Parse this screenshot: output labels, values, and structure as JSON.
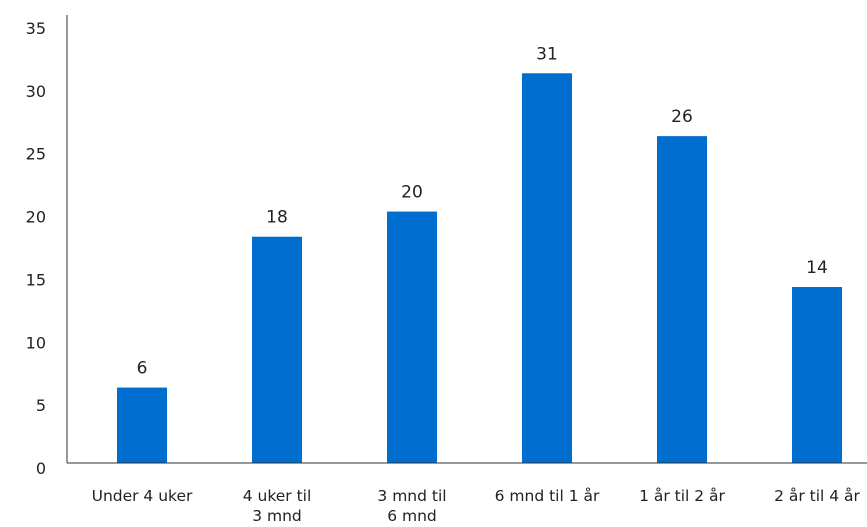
{
  "chart_data": {
    "type": "bar",
    "categories": [
      [
        "Under 4 uker"
      ],
      [
        "4 uker til",
        "3 mnd"
      ],
      [
        "3 mnd til",
        "6 mnd"
      ],
      [
        "6 mnd til 1 år"
      ],
      [
        "1 år til 2 år"
      ],
      [
        "2 år til 4 år"
      ]
    ],
    "values": [
      6,
      18,
      20,
      31,
      26,
      14
    ],
    "ylim": [
      0,
      35
    ],
    "yticks": [
      0,
      5,
      10,
      15,
      20,
      25,
      30,
      35
    ],
    "grid": false,
    "colors": {
      "bar": "#006ecf",
      "axis": "#333333",
      "text": "#222222"
    }
  }
}
